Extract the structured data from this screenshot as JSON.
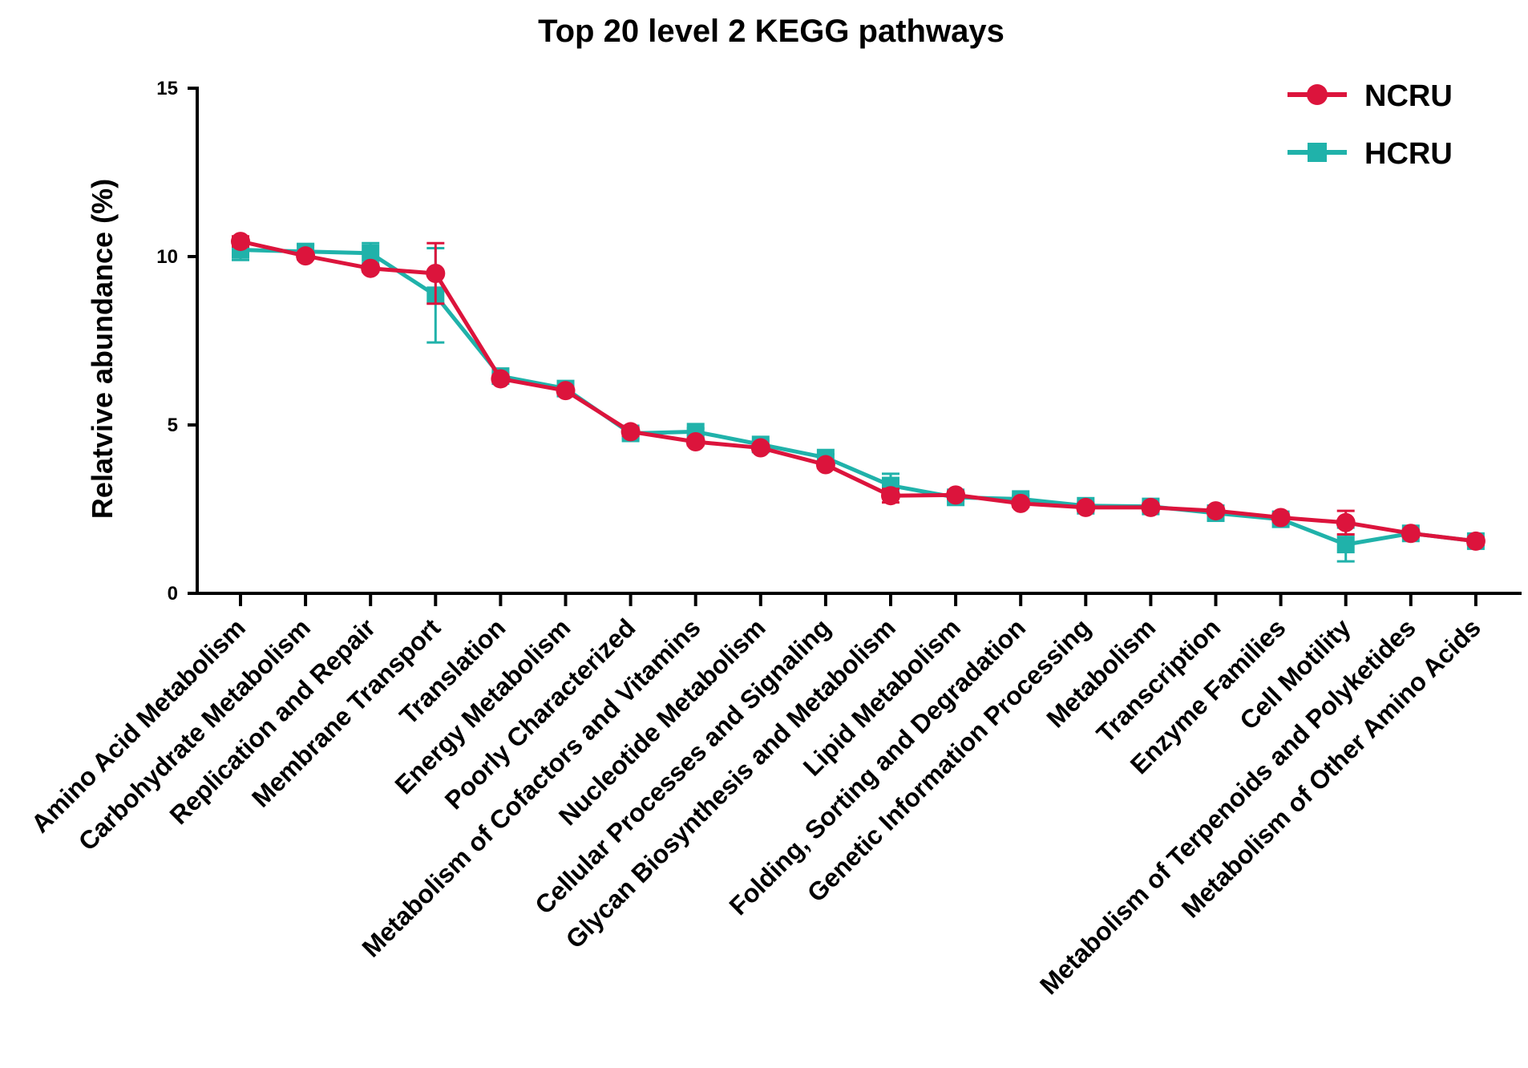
{
  "chart_data": {
    "type": "line",
    "title": "Top 20 level 2 KEGG pathways",
    "xlabel": "",
    "ylabel": "Relatvive abundance (%)",
    "ylim": [
      0,
      15
    ],
    "yticks": [
      0,
      5,
      10,
      15
    ],
    "grid": false,
    "legend_position": "top-right",
    "categories": [
      "Amino Acid Metabolism",
      "Carbohydrate Metabolism",
      "Replication and Repair",
      "Membrane Transport",
      "Translation",
      "Energy Metabolism",
      "Poorly Characterized",
      "Metabolism of Cofactors and Vitamins",
      "Nucleotide Metabolism",
      "Cellular Processes and Signaling",
      "Glycan Biosynthesis and Metabolism",
      "Lipid Metabolism",
      "Folding, Sorting and Degradation",
      "Genetic Information Processing",
      "Metabolism",
      "Transcription",
      "Enzyme Families",
      "Cell Motility",
      "Metabolism of Terpenoids and Polyketides",
      "Metabolism of Other Amino Acids"
    ],
    "series": [
      {
        "name": "NCRU",
        "color": "#DC143C",
        "marker": "circle",
        "values": [
          10.45,
          10.02,
          9.65,
          9.5,
          6.37,
          6.02,
          4.8,
          4.5,
          4.32,
          3.82,
          2.9,
          2.92,
          2.67,
          2.55,
          2.55,
          2.45,
          2.25,
          2.1,
          1.78,
          1.55
        ],
        "errors": [
          0.15,
          0.1,
          0.1,
          0.9,
          0.1,
          0.1,
          0.12,
          0.1,
          0.1,
          0.1,
          0.2,
          0.1,
          0.1,
          0.1,
          0.1,
          0.1,
          0.1,
          0.35,
          0.1,
          0.1
        ]
      },
      {
        "name": "HCRU",
        "color": "#20B2AA",
        "marker": "square",
        "values": [
          10.2,
          10.15,
          10.1,
          8.85,
          6.45,
          6.08,
          4.75,
          4.8,
          4.42,
          4.03,
          3.2,
          2.85,
          2.8,
          2.6,
          2.58,
          2.38,
          2.2,
          1.45,
          1.78,
          1.55
        ],
        "errors": [
          0.3,
          0.2,
          0.3,
          1.4,
          0.1,
          0.1,
          0.15,
          0.1,
          0.1,
          0.1,
          0.35,
          0.1,
          0.1,
          0.1,
          0.1,
          0.1,
          0.1,
          0.5,
          0.1,
          0.1
        ]
      }
    ]
  }
}
